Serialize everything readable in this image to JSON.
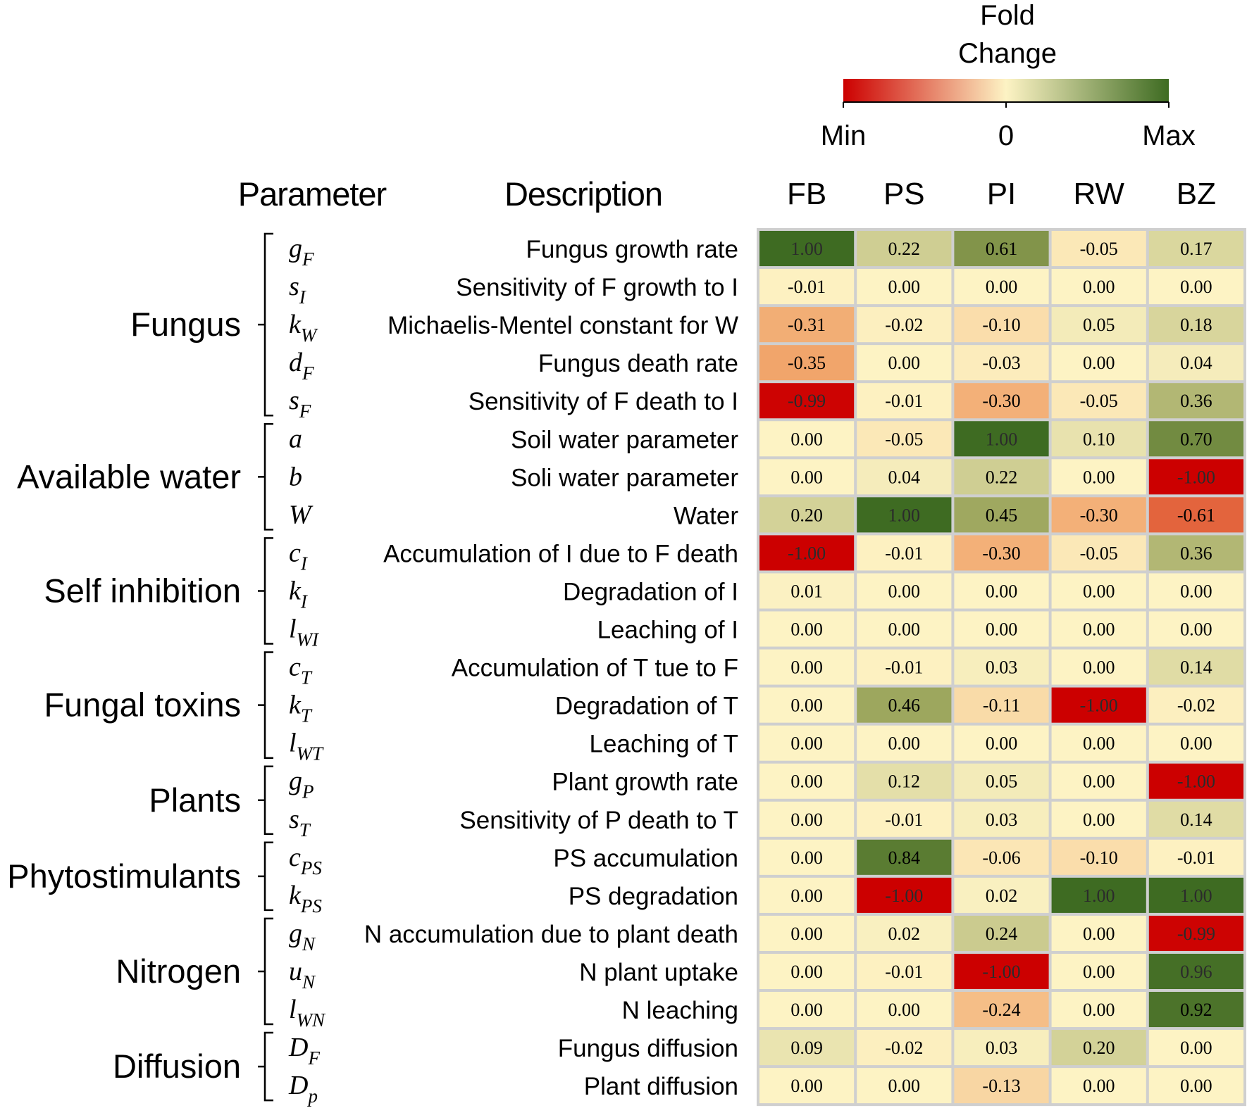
{
  "chart_data": {
    "type": "heatmap",
    "legend": {
      "title_line1": "Fold",
      "title_line2": "Change",
      "min_label": "Min",
      "mid_label": "0",
      "max_label": "Max",
      "colors": {
        "min": "#cc0000",
        "mid": "#fdf3c4",
        "max": "#3e6b22"
      }
    },
    "headers": {
      "parameter": "Parameter",
      "description": "Description"
    },
    "columns": [
      "FB",
      "PS",
      "PI",
      "RW",
      "BZ"
    ],
    "groups": [
      {
        "name": "Fungus",
        "rows": [
          0,
          4
        ]
      },
      {
        "name": "Available water",
        "rows": [
          5,
          7
        ]
      },
      {
        "name": "Self inhibition",
        "rows": [
          8,
          10
        ]
      },
      {
        "name": "Fungal toxins",
        "rows": [
          11,
          13
        ]
      },
      {
        "name": "Plants",
        "rows": [
          14,
          15
        ]
      },
      {
        "name": "Phytostimulants",
        "rows": [
          16,
          17
        ]
      },
      {
        "name": "Nitrogen",
        "rows": [
          18,
          20
        ]
      },
      {
        "name": "Diffusion",
        "rows": [
          21,
          22
        ]
      }
    ],
    "rows": [
      {
        "param": "g",
        "sub": "F",
        "description": "Fungus growth rate",
        "values": [
          "1.00",
          "0.22",
          "0.61",
          "-0.05",
          "0.17"
        ]
      },
      {
        "param": "s",
        "sub": "I",
        "description": "Sensitivity of F growth to I",
        "values": [
          "-0.01",
          "0.00",
          "0.00",
          "0.00",
          "0.00"
        ]
      },
      {
        "param": "k",
        "sub": "W",
        "description": "Michaelis-Mentel constant for W",
        "values": [
          "-0.31",
          "-0.02",
          "-0.10",
          "0.05",
          "0.18"
        ]
      },
      {
        "param": "d",
        "sub": "F",
        "description": "Fungus death rate",
        "values": [
          "-0.35",
          "0.00",
          "-0.03",
          "0.00",
          "0.04"
        ]
      },
      {
        "param": "s",
        "sub": "F",
        "description": "Sensitivity of F death to I",
        "values": [
          "-0.99",
          "-0.01",
          "-0.30",
          "-0.05",
          "0.36"
        ]
      },
      {
        "param": "a",
        "sub": "",
        "description": "Soil water parameter",
        "values": [
          "0.00",
          "-0.05",
          "1.00",
          "0.10",
          "0.70"
        ]
      },
      {
        "param": "b",
        "sub": "",
        "description": "Soli water parameter",
        "values": [
          "0.00",
          "0.04",
          "0.22",
          "0.00",
          "-1.00"
        ]
      },
      {
        "param": "W",
        "sub": "",
        "description": "Water",
        "values": [
          "0.20",
          "1.00",
          "0.45",
          "-0.30",
          "-0.61"
        ]
      },
      {
        "param": "c",
        "sub": "I",
        "description": "Accumulation of I due to F death",
        "values": [
          "-1.00",
          "-0.01",
          "-0.30",
          "-0.05",
          "0.36"
        ]
      },
      {
        "param": "k",
        "sub": "I",
        "description": "Degradation of I",
        "values": [
          "0.01",
          "0.00",
          "0.00",
          "0.00",
          "0.00"
        ]
      },
      {
        "param": "l",
        "sub": "WI",
        "description": "Leaching of I",
        "values": [
          "0.00",
          "0.00",
          "0.00",
          "0.00",
          "0.00"
        ]
      },
      {
        "param": "c",
        "sub": "T",
        "description": "Accumulation of T tue to F",
        "values": [
          "0.00",
          "-0.01",
          "0.03",
          "0.00",
          "0.14"
        ]
      },
      {
        "param": "k",
        "sub": "T",
        "description": "Degradation of T",
        "values": [
          "0.00",
          "0.46",
          "-0.11",
          "-1.00",
          "-0.02"
        ]
      },
      {
        "param": "l",
        "sub": "WT",
        "description": "Leaching of T",
        "values": [
          "0.00",
          "0.00",
          "0.00",
          "0.00",
          "0.00"
        ]
      },
      {
        "param": "g",
        "sub": "P",
        "description": "Plant growth rate",
        "values": [
          "0.00",
          "0.12",
          "0.05",
          "0.00",
          "-1.00"
        ]
      },
      {
        "param": "s",
        "sub": "T",
        "description": "Sensitivity of P death to T",
        "values": [
          "0.00",
          "-0.01",
          "0.03",
          "0.00",
          "0.14"
        ]
      },
      {
        "param": "c",
        "sub": "PS",
        "description": "PS accumulation",
        "values": [
          "0.00",
          "0.84",
          "-0.06",
          "-0.10",
          "-0.01"
        ]
      },
      {
        "param": "k",
        "sub": "PS",
        "description": "PS degradation",
        "values": [
          "0.00",
          "-1.00",
          "0.02",
          "1.00",
          "1.00"
        ]
      },
      {
        "param": "g",
        "sub": "N",
        "description": "N accumulation due to plant death",
        "values": [
          "0.00",
          "0.02",
          "0.24",
          "0.00",
          "-0.99"
        ]
      },
      {
        "param": "u",
        "sub": "N",
        "description": "N plant uptake",
        "values": [
          "0.00",
          "-0.01",
          "-1.00",
          "0.00",
          "0.96"
        ]
      },
      {
        "param": "l",
        "sub": "WN",
        "description": "N leaching",
        "values": [
          "0.00",
          "0.00",
          "-0.24",
          "0.00",
          "0.92"
        ]
      },
      {
        "param": "D",
        "sub": "F",
        "description": "Fungus diffusion",
        "values": [
          "0.09",
          "-0.02",
          "0.03",
          "0.20",
          "0.00"
        ]
      },
      {
        "param": "D",
        "sub": "p",
        "description": "Plant diffusion",
        "values": [
          "0.00",
          "0.00",
          "-0.13",
          "0.00",
          "0.00"
        ]
      }
    ]
  }
}
